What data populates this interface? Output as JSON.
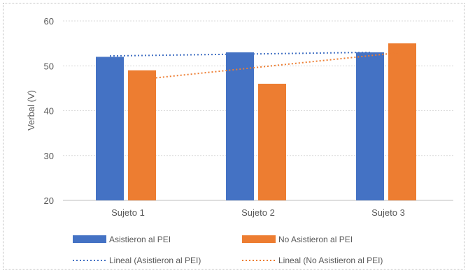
{
  "chart_data": {
    "type": "bar",
    "categories": [
      "Sujeto 1",
      "Sujeto 2",
      "Sujeto 3"
    ],
    "series": [
      {
        "name": "Asistieron al PEI",
        "values": [
          52,
          53,
          53
        ],
        "color": "#4472C4"
      },
      {
        "name": "No Asistieron al PEI",
        "values": [
          49,
          46,
          55
        ],
        "color": "#ED7D31"
      }
    ],
    "trendlines": [
      {
        "name": "Lineal (Asistieron al PEI)",
        "series": 0,
        "start": 52.2,
        "end": 53.0,
        "color": "#4472C4",
        "style": "dotted"
      },
      {
        "name": "Lineal (No Asistieron al PEI)",
        "series": 1,
        "start": 47.0,
        "end": 53.0,
        "color": "#ED7D31",
        "style": "dotted"
      }
    ],
    "title": "",
    "xlabel": "",
    "ylabel": "Verbal (V)",
    "ylim": [
      20,
      60
    ],
    "yticks": [
      "20",
      "30",
      "40",
      "50",
      "60"
    ],
    "grid": true,
    "legend_position": "bottom"
  }
}
